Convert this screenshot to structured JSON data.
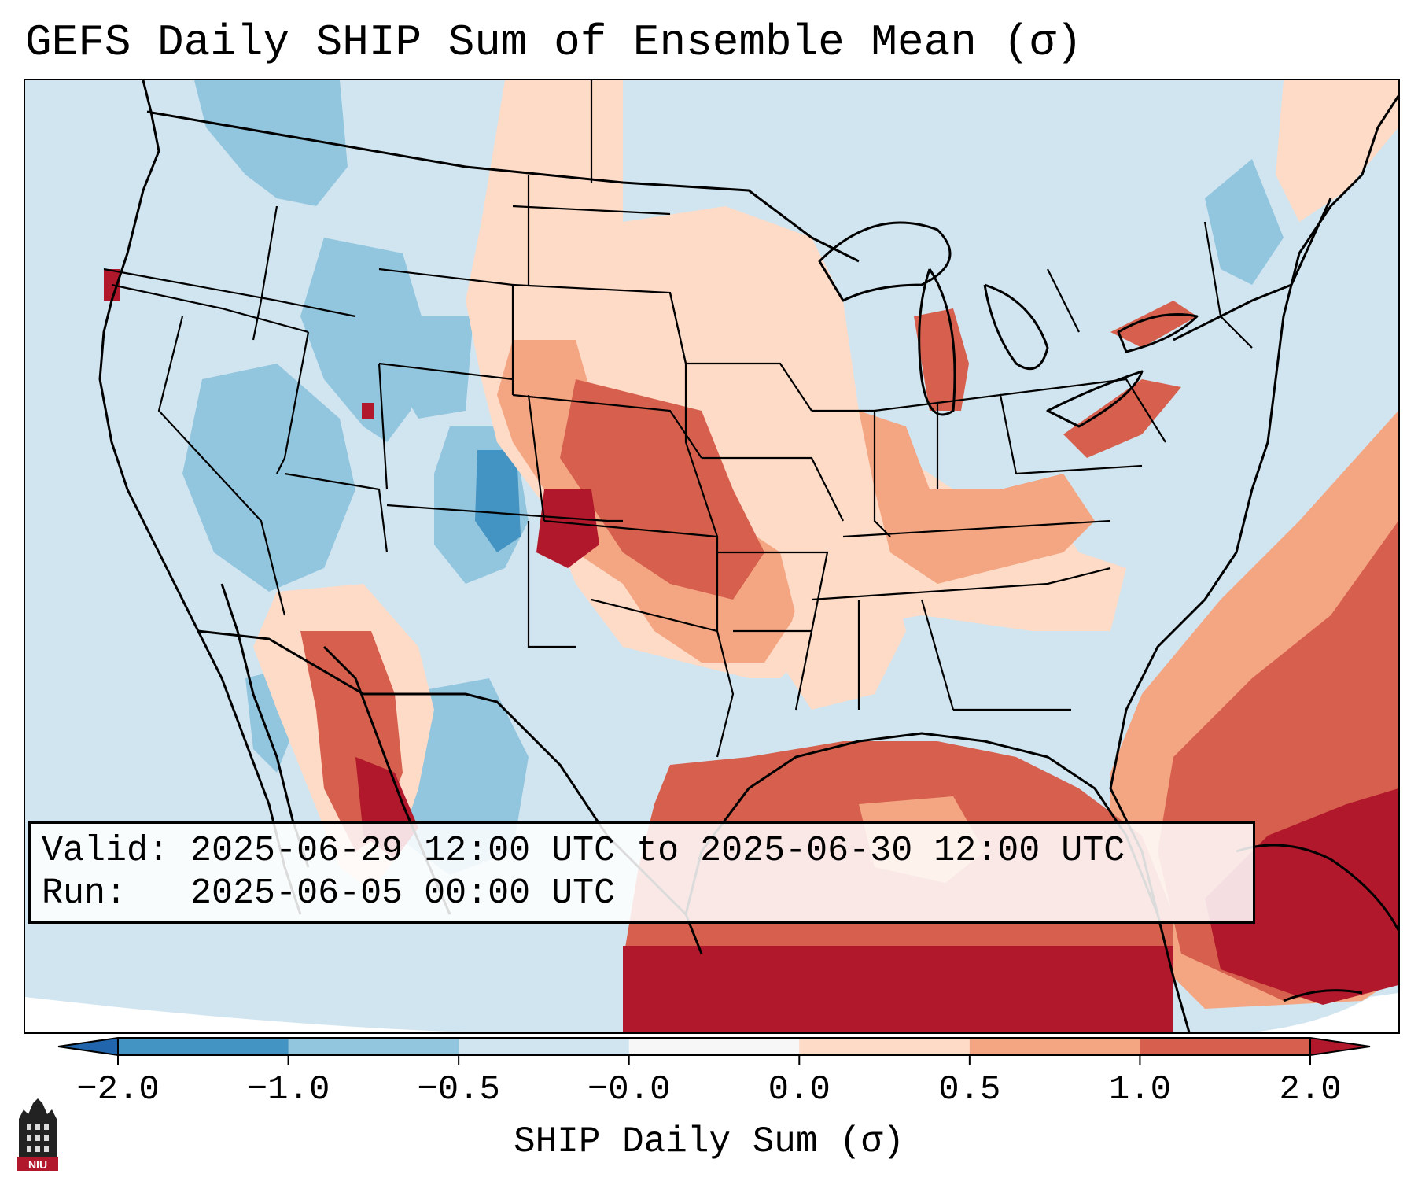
{
  "title": "GEFS Daily SHIP Sum of Ensemble Mean (σ)",
  "info": {
    "valid_label": "Valid:",
    "valid_value": "2025-06-29 12:00 UTC to 2025-06-30 12:00 UTC",
    "run_label": "Run:",
    "run_value": "2025-06-05 00:00 UTC"
  },
  "colorbar": {
    "label": "SHIP Daily Sum (σ)",
    "ticks": [
      "−2.0",
      "−1.0",
      "−0.5",
      "−0.0",
      "0.0",
      "0.5",
      "1.0",
      "2.0"
    ],
    "colors": [
      "#4393c3",
      "#92c5de",
      "#d1e5f0",
      "#f7f7f7",
      "#fddbc7",
      "#f4a582",
      "#d6604d",
      "#b2182b"
    ],
    "under_color": "#2166ac",
    "over_color": "#67001f"
  },
  "map": {
    "background_color": "#d1e5f0",
    "projection": "Lambert Conformal CONUS"
  },
  "logo": {
    "text": "NIU",
    "icon": "niu-logo-icon",
    "color": "#b2182b"
  }
}
